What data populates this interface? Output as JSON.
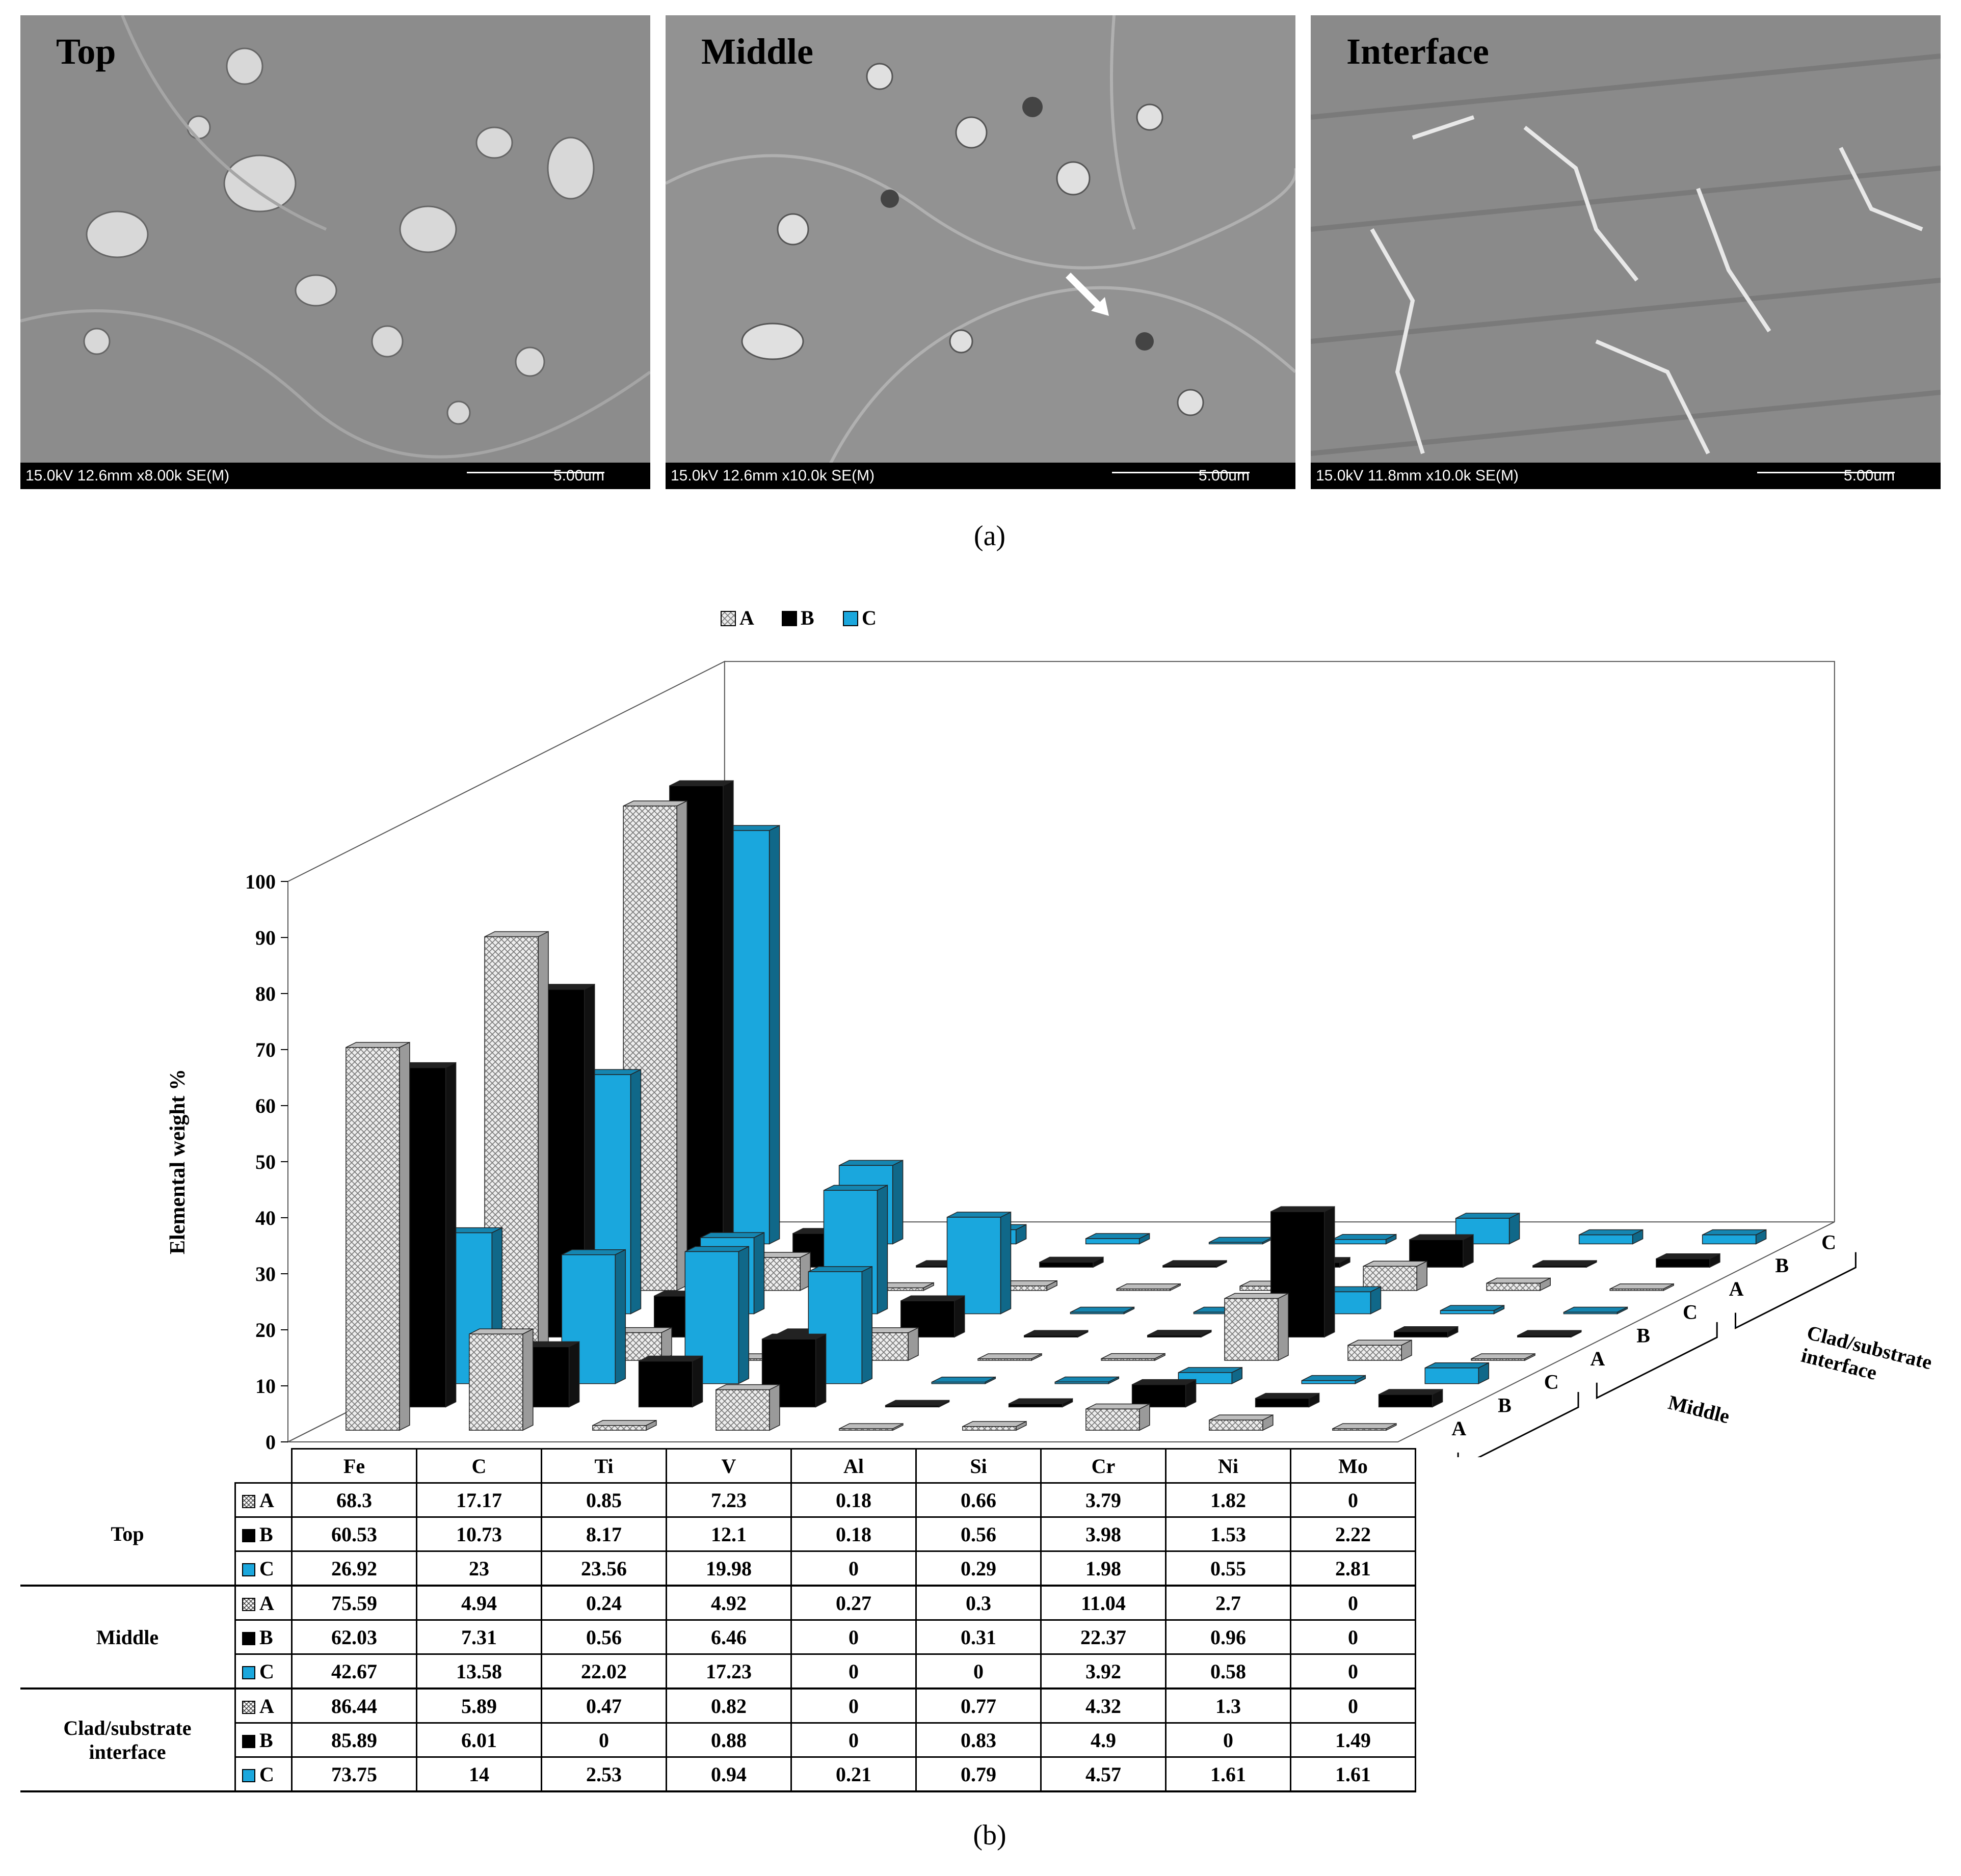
{
  "panel_a": {
    "caption": "(a)",
    "images": [
      {
        "label": "Top",
        "info": "15.0kV 12.6mm x8.00k SE(M)",
        "scale": "5.00um"
      },
      {
        "label": "Middle",
        "info": "15.0kV 12.6mm x10.0k SE(M)",
        "scale": "5.00um"
      },
      {
        "label": "Interface",
        "info": "15.0kV 11.8mm x10.0k SE(M)",
        "scale": "5.00um"
      }
    ]
  },
  "panel_b": {
    "caption": "(b)"
  },
  "colors": {
    "A": "#d9d9d9",
    "B": "#000000",
    "C": "#1aa7dd"
  },
  "chart_data": {
    "type": "bar",
    "subtype": "3d-clustered",
    "ylabel": "Elemental weight %",
    "ylim": [
      0,
      100
    ],
    "yticks": [
      0,
      10,
      20,
      30,
      40,
      50,
      60,
      70,
      80,
      90,
      100
    ],
    "categories": [
      "Fe",
      "C",
      "Ti",
      "V",
      "Al",
      "Si",
      "Cr",
      "Ni",
      "Mo"
    ],
    "legend": [
      "A",
      "B",
      "C"
    ],
    "depth_groups": [
      "Top",
      "Middle",
      "Clad/substrate interface"
    ],
    "depth_labels": [
      "A",
      "B",
      "C",
      "A",
      "B",
      "C",
      "A",
      "B",
      "C"
    ],
    "groups": [
      {
        "name": "Top",
        "series": [
          {
            "name": "A",
            "values": [
              68.3,
              17.17,
              0.85,
              7.23,
              0.18,
              0.66,
              3.79,
              1.82,
              0
            ]
          },
          {
            "name": "B",
            "values": [
              60.53,
              10.73,
              8.17,
              12.1,
              0.18,
              0.56,
              3.98,
              1.53,
              2.22
            ]
          },
          {
            "name": "C",
            "values": [
              26.92,
              23,
              23.56,
              19.98,
              0,
              0.29,
              1.98,
              0.55,
              2.81
            ]
          }
        ]
      },
      {
        "name": "Middle",
        "series": [
          {
            "name": "A",
            "values": [
              75.59,
              4.94,
              0.24,
              4.92,
              0.27,
              0.3,
              11.04,
              2.7,
              0
            ]
          },
          {
            "name": "B",
            "values": [
              62.03,
              7.31,
              0.56,
              6.46,
              0,
              0.31,
              22.37,
              0.96,
              0
            ]
          },
          {
            "name": "C",
            "values": [
              42.67,
              13.58,
              22.02,
              17.23,
              0,
              0,
              3.92,
              0.58,
              0
            ]
          }
        ]
      },
      {
        "name": "Clad/substrate interface",
        "series": [
          {
            "name": "A",
            "values": [
              86.44,
              5.89,
              0.47,
              0.82,
              0,
              0.77,
              4.32,
              1.3,
              0
            ]
          },
          {
            "name": "B",
            "values": [
              85.89,
              6.01,
              0,
              0.88,
              0,
              0.83,
              4.9,
              0,
              1.49
            ]
          },
          {
            "name": "C",
            "values": [
              73.75,
              14,
              2.53,
              0.94,
              0.21,
              0.79,
              4.57,
              1.61,
              1.61
            ]
          }
        ]
      }
    ]
  },
  "table": {
    "rows": [
      {
        "group": "Top",
        "series": "A",
        "values": [
          "68.3",
          "17.17",
          "0.85",
          "7.23",
          "0.18",
          "0.66",
          "3.79",
          "1.82",
          "0"
        ]
      },
      {
        "group": "",
        "series": "B",
        "values": [
          "60.53",
          "10.73",
          "8.17",
          "12.1",
          "0.18",
          "0.56",
          "3.98",
          "1.53",
          "2.22"
        ]
      },
      {
        "group": "",
        "series": "C",
        "values": [
          "26.92",
          "23",
          "23.56",
          "19.98",
          "0",
          "0.29",
          "1.98",
          "0.55",
          "2.81"
        ]
      },
      {
        "group": "Middle",
        "series": "A",
        "values": [
          "75.59",
          "4.94",
          "0.24",
          "4.92",
          "0.27",
          "0.3",
          "11.04",
          "2.7",
          "0"
        ]
      },
      {
        "group": "",
        "series": "B",
        "values": [
          "62.03",
          "7.31",
          "0.56",
          "6.46",
          "0",
          "0.31",
          "22.37",
          "0.96",
          "0"
        ]
      },
      {
        "group": "",
        "series": "C",
        "values": [
          "42.67",
          "13.58",
          "22.02",
          "17.23",
          "0",
          "0",
          "3.92",
          "0.58",
          "0"
        ]
      },
      {
        "group": "Clad/substrate interface",
        "series": "A",
        "values": [
          "86.44",
          "5.89",
          "0.47",
          "0.82",
          "0",
          "0.77",
          "4.32",
          "1.3",
          "0"
        ]
      },
      {
        "group": "",
        "series": "B",
        "values": [
          "85.89",
          "6.01",
          "0",
          "0.88",
          "0",
          "0.83",
          "4.9",
          "0",
          "1.49"
        ]
      },
      {
        "group": "",
        "series": "C",
        "values": [
          "73.75",
          "14",
          "2.53",
          "0.94",
          "0.21",
          "0.79",
          "4.57",
          "1.61",
          "1.61"
        ]
      }
    ]
  }
}
